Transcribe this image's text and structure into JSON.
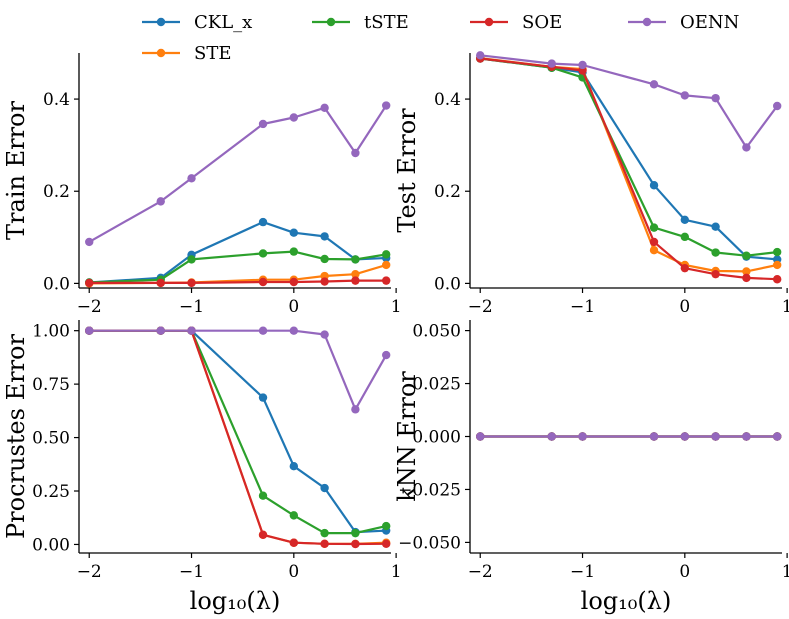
{
  "chart_data": {
    "type": "line",
    "legend": {
      "placement": "top-center",
      "entries": [
        {
          "name": "CKL_x",
          "color": "#1f77b4"
        },
        {
          "name": "tSTE",
          "color": "#2ca02c"
        },
        {
          "name": "SOE",
          "color": "#d62728"
        },
        {
          "name": "OENN",
          "color": "#9467bd"
        },
        {
          "name": "STE",
          "color": "#ff7f0e"
        }
      ]
    },
    "panels": [
      {
        "id": "train",
        "ylabel": "Train Error",
        "xlabel": "",
        "xlim": [
          -2.1,
          0.95
        ],
        "ylim": [
          -0.01,
          0.5
        ],
        "xticks": [
          -2,
          -1,
          0,
          1
        ],
        "xtick_labels": [
          "−2",
          "−1",
          "0",
          "1"
        ],
        "yticks": [
          0.0,
          0.2,
          0.4
        ],
        "ytick_labels": [
          "0.0",
          "0.2",
          "0.4"
        ],
        "x": [
          -2,
          -1.301,
          -1,
          -0.301,
          0,
          0.301,
          0.602,
          0.903
        ],
        "series": [
          {
            "name": "CKL_x",
            "values": [
              0.002,
              0.012,
              0.062,
              0.133,
              0.11,
              0.102,
              0.052,
              0.055
            ]
          },
          {
            "name": "STE",
            "values": [
              0.0,
              0.001,
              0.002,
              0.008,
              0.008,
              0.016,
              0.02,
              0.04
            ]
          },
          {
            "name": "tSTE",
            "values": [
              0.002,
              0.008,
              0.052,
              0.065,
              0.069,
              0.053,
              0.052,
              0.063
            ]
          },
          {
            "name": "SOE",
            "values": [
              0.001,
              0.001,
              0.001,
              0.003,
              0.003,
              0.004,
              0.006,
              0.006
            ]
          },
          {
            "name": "OENN",
            "values": [
              0.09,
              0.178,
              0.228,
              0.346,
              0.36,
              0.381,
              0.283,
              0.386
            ]
          }
        ]
      },
      {
        "id": "test",
        "ylabel": "Test Error",
        "xlabel": "",
        "xlim": [
          -2.1,
          0.95
        ],
        "ylim": [
          -0.01,
          0.5
        ],
        "xticks": [
          -2,
          -1,
          0,
          1
        ],
        "xtick_labels": [
          "−2",
          "−1",
          "0",
          "1"
        ],
        "yticks": [
          0.0,
          0.2,
          0.4
        ],
        "ytick_labels": [
          "0.0",
          "0.2",
          "0.4"
        ],
        "x": [
          -2,
          -1.301,
          -1,
          -0.301,
          0,
          0.301,
          0.602,
          0.903
        ],
        "series": [
          {
            "name": "CKL_x",
            "values": [
              0.488,
              0.468,
              0.458,
              0.213,
              0.138,
              0.123,
              0.058,
              0.052
            ]
          },
          {
            "name": "STE",
            "values": [
              0.489,
              0.47,
              0.465,
              0.072,
              0.04,
              0.027,
              0.026,
              0.04
            ]
          },
          {
            "name": "tSTE",
            "values": [
              0.488,
              0.468,
              0.447,
              0.121,
              0.101,
              0.067,
              0.06,
              0.068
            ]
          },
          {
            "name": "SOE",
            "values": [
              0.488,
              0.47,
              0.462,
              0.09,
              0.033,
              0.02,
              0.012,
              0.009
            ]
          },
          {
            "name": "OENN",
            "values": [
              0.495,
              0.477,
              0.474,
              0.432,
              0.408,
              0.402,
              0.295,
              0.385
            ]
          }
        ]
      },
      {
        "id": "procrustes",
        "ylabel": "Procrustes Error",
        "xlabel": "log₁₀(λ)",
        "xlim": [
          -2.1,
          0.95
        ],
        "ylim": [
          -0.04,
          1.05
        ],
        "xticks": [
          -2,
          -1,
          0,
          1
        ],
        "xtick_labels": [
          "−2",
          "−1",
          "0",
          "1"
        ],
        "yticks": [
          0.0,
          0.25,
          0.5,
          0.75,
          1.0
        ],
        "ytick_labels": [
          "0.00",
          "0.25",
          "0.50",
          "0.75",
          "1.00"
        ],
        "x": [
          -2,
          -1.301,
          -1,
          -0.301,
          0,
          0.301,
          0.602,
          0.903
        ],
        "series": [
          {
            "name": "CKL_x",
            "values": [
              1.0,
              1.0,
              1.0,
              0.687,
              0.366,
              0.264,
              0.058,
              0.065
            ]
          },
          {
            "name": "STE",
            "values": [
              1.0,
              1.0,
              1.0,
              0.045,
              0.008,
              0.003,
              0.003,
              0.008
            ]
          },
          {
            "name": "tSTE",
            "values": [
              1.0,
              1.0,
              1.0,
              0.228,
              0.136,
              0.053,
              0.053,
              0.086
            ]
          },
          {
            "name": "SOE",
            "values": [
              1.0,
              1.0,
              1.0,
              0.045,
              0.008,
              0.003,
              0.002,
              0.003
            ]
          },
          {
            "name": "OENN",
            "values": [
              1.0,
              1.0,
              1.0,
              1.0,
              1.0,
              0.982,
              0.632,
              0.886
            ]
          }
        ]
      },
      {
        "id": "knn",
        "ylabel": "kNN Error",
        "xlabel": "log₁₀(λ)",
        "xlim": [
          -2.1,
          0.95
        ],
        "ylim": [
          -0.055,
          0.055
        ],
        "xticks": [
          -2,
          -1,
          0,
          1
        ],
        "xtick_labels": [
          "−2",
          "−1",
          "0",
          "1"
        ],
        "yticks": [
          -0.05,
          -0.025,
          0.0,
          0.025,
          0.05
        ],
        "ytick_labels": [
          "−0.050",
          "−0.025",
          "0.000",
          "0.025",
          "0.050"
        ],
        "x": [
          -2,
          -1.301,
          -1,
          -0.301,
          0,
          0.301,
          0.602,
          0.903
        ],
        "series": [
          {
            "name": "CKL_x",
            "values": [
              0,
              0,
              0,
              0,
              0,
              0,
              0,
              0
            ]
          },
          {
            "name": "STE",
            "values": [
              0,
              0,
              0,
              0,
              0,
              0,
              0,
              0
            ]
          },
          {
            "name": "tSTE",
            "values": [
              0,
              0,
              0,
              0,
              0,
              0,
              0,
              0
            ]
          },
          {
            "name": "SOE",
            "values": [
              0,
              0,
              0,
              0,
              0,
              0,
              0,
              0
            ]
          },
          {
            "name": "OENN",
            "values": [
              0,
              0,
              0,
              0,
              0,
              0,
              0,
              0
            ]
          }
        ]
      }
    ]
  }
}
